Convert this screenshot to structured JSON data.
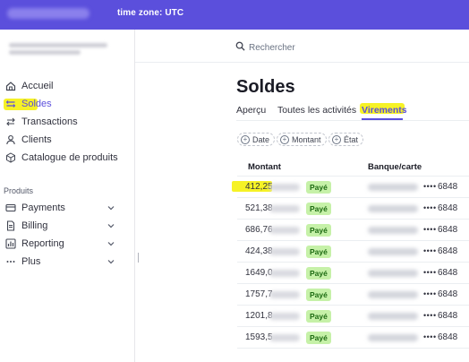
{
  "topbar": {
    "timezone": "time zone: UTC"
  },
  "sidebar": {
    "items": [
      {
        "label": "Accueil",
        "icon": "home-icon"
      },
      {
        "label": "Soldes",
        "icon": "balance-icon"
      },
      {
        "label": "Transactions",
        "icon": "transfer-arrows-icon"
      },
      {
        "label": "Clients",
        "icon": "person-icon"
      },
      {
        "label": "Catalogue de produits",
        "icon": "box-icon"
      }
    ],
    "section_label": "Produits",
    "products": [
      {
        "label": "Payments",
        "icon": "card-icon"
      },
      {
        "label": "Billing",
        "icon": "document-icon"
      },
      {
        "label": "Reporting",
        "icon": "chart-icon"
      },
      {
        "label": "Plus",
        "icon": "more-dots-icon"
      }
    ]
  },
  "search": {
    "placeholder": "Rechercher"
  },
  "page": {
    "title": "Soldes"
  },
  "tabs": [
    {
      "label": "Aperçu",
      "active": false
    },
    {
      "label": "Toutes les activités",
      "active": false
    },
    {
      "label": "Virements",
      "active": true
    }
  ],
  "filters": [
    "Date",
    "Montant",
    "État"
  ],
  "table": {
    "columns": [
      "Montant",
      "Banque/carte"
    ],
    "rows": [
      {
        "amount": "412,25",
        "status": "Payé",
        "dots": "••••",
        "last4": "6848"
      },
      {
        "amount": "521,38",
        "status": "Payé",
        "dots": "••••",
        "last4": "6848"
      },
      {
        "amount": "686,76",
        "status": "Payé",
        "dots": "••••",
        "last4": "6848"
      },
      {
        "amount": "424,38",
        "status": "Payé",
        "dots": "••••",
        "last4": "6848"
      },
      {
        "amount": "1649,00",
        "status": "Payé",
        "dots": "••••",
        "last4": "6848"
      },
      {
        "amount": "1757,78",
        "status": "Payé",
        "dots": "••••",
        "last4": "6848"
      },
      {
        "amount": "1201,83",
        "status": "Payé",
        "dots": "••••",
        "last4": "6848"
      },
      {
        "amount": "1593,56",
        "status": "Payé",
        "dots": "••••",
        "last4": "6848"
      }
    ]
  },
  "colors": {
    "accent": "#5b4fdc",
    "badge_bg": "#c6f1a8",
    "badge_text": "#1d6b12",
    "highlight": "#f5f000"
  }
}
